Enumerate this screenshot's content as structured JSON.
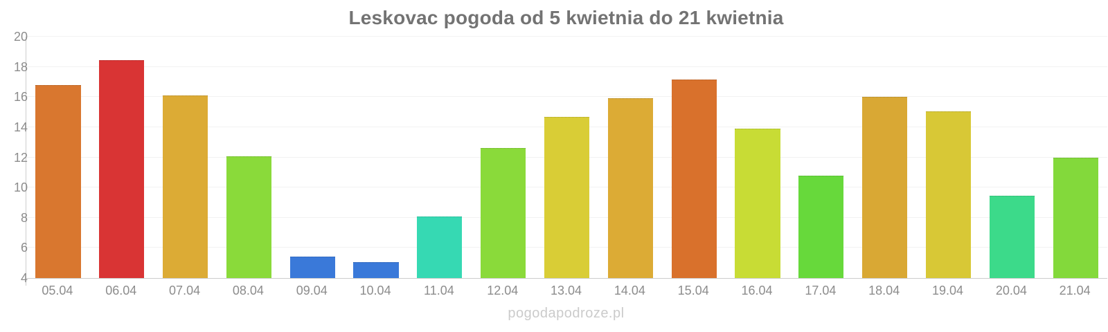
{
  "chart_data": {
    "type": "bar",
    "title": "Leskovac pogoda od 5 kwietnia do 21 kwietnia",
    "categories": [
      "05.04",
      "06.04",
      "07.04",
      "08.04",
      "09.04",
      "10.04",
      "11.04",
      "12.04",
      "13.04",
      "14.04",
      "15.04",
      "16.04",
      "17.04",
      "18.04",
      "19.04",
      "20.04",
      "21.04"
    ],
    "values": [
      16.8,
      18.45,
      16.1,
      12.05,
      5.4,
      5.05,
      8.1,
      12.6,
      14.7,
      15.9,
      17.15,
      13.9,
      10.8,
      16.0,
      15.05,
      9.45,
      12.0
    ],
    "bar_colors": [
      "#d9772f",
      "#d93434",
      "#dcab35",
      "#8ada3a",
      "#3a79d9",
      "#3a79d9",
      "#36d9b3",
      "#8ada3a",
      "#d9cd36",
      "#dcab35",
      "#d9712c",
      "#c8dc35",
      "#67d93b",
      "#d9a834",
      "#d8c836",
      "#3cda8a",
      "#83d93b"
    ],
    "xlabel": "",
    "ylabel": "",
    "ylim": [
      4,
      20
    ],
    "yticks": [
      4,
      6,
      8,
      10,
      12,
      14,
      16,
      18,
      20
    ],
    "grid": true,
    "legend": "none",
    "watermark": "pogodapodroze.pl",
    "colors": {
      "title_text": "#737373",
      "tick_text": "#8c8c8c",
      "axis_line": "#cccccc",
      "gridline": "#f2f2f2",
      "watermark_text": "#cbcbcb",
      "background": "#ffffff"
    }
  }
}
